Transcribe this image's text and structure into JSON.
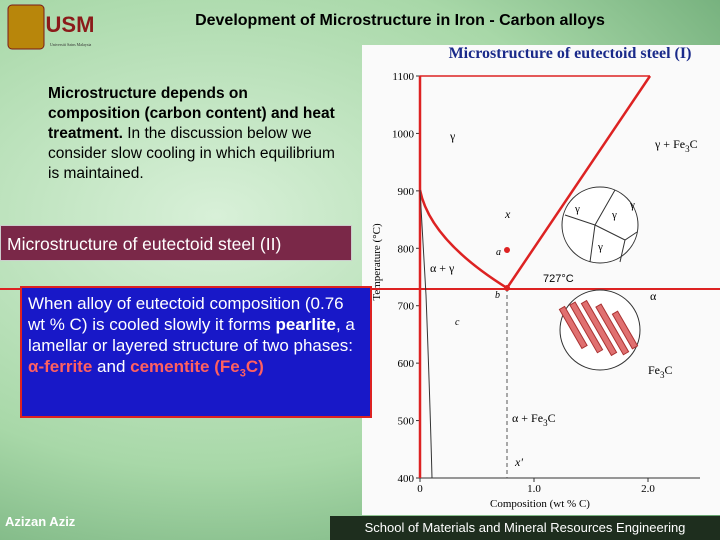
{
  "header": {
    "logo": "USM",
    "logo_caption": "Universiti Sains Malaysia",
    "title": "Development of Microstructure in Iron - Carbon alloys"
  },
  "intro": {
    "bold": "Microstructure depends on composition (carbon content) and heat treatment.",
    "rest": " In the discussion below we consider slow cooling in which equilibrium is maintained."
  },
  "section_banner": "Microstructure of eutectoid steel (II)",
  "blue_box": {
    "p1": "When alloy of eutectoid composition (0.76 wt % C) is cooled slowly it forms ",
    "pearlite": "pearlite",
    "p2": ", a lamellar or layered structure of two phases: ",
    "ferrite": "α-ferrite",
    "p3": " and ",
    "cementite": "cementite (Fe",
    "cementite_sub": "3",
    "cementite_end": "C)"
  },
  "figure": {
    "title": "Microstructure of eutectoid steel (I)",
    "y_axis_label": "Temperature (°C)",
    "x_axis_label": "Composition (wt % C)",
    "yticks": [
      1100,
      1000,
      900,
      800,
      700,
      600,
      500,
      400
    ],
    "xticks": [
      0,
      {
        "value": 1,
        "label": "1.0"
      },
      {
        "value": 2,
        "label": "2.0"
      }
    ],
    "labels": {
      "gamma": "γ",
      "gamma_fe3c": "γ + Fe",
      "gamma_fe3c_sub": "3",
      "gamma_fe3c_end": "C",
      "alpha_gamma": "α + γ",
      "eutectoid_temp": "727°C",
      "alpha_fe3c": "α + Fe",
      "alpha_fe3c_sub": "3",
      "alpha_fe3c_end": "C",
      "fe3c": "Fe",
      "fe3c_sub": "3",
      "fe3c_end": "C",
      "alpha": "α",
      "point_x": "x",
      "point_a": "a",
      "point_b": "b",
      "point_x2": "x'",
      "point_c": "c"
    },
    "grain_labels": [
      "γ",
      "γ",
      "γ",
      "γ"
    ]
  },
  "footer": {
    "author": "Azizan Aziz",
    "school": "School of Materials and Mineral Resources Engineering"
  }
}
